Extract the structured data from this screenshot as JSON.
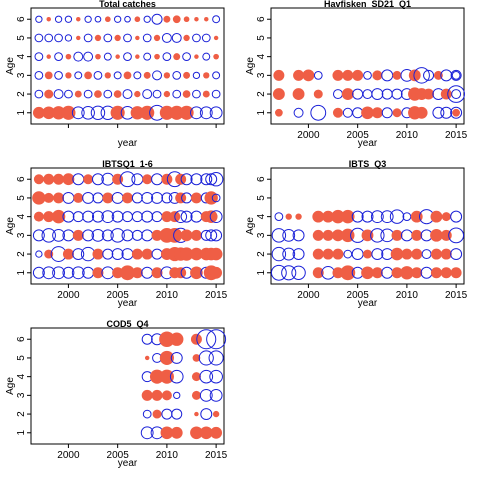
{
  "figure": {
    "ylabel": "Age",
    "xlabel": "year",
    "colors": {
      "positive": "#ef5e45",
      "negative": "#1b22d8",
      "frame": "#000000"
    }
  },
  "chart_data": [
    {
      "type": "scatter",
      "title": "Total catches",
      "xlabel": "year",
      "ylabel": "Age",
      "xlim": [
        1996.2,
        2015.8
      ],
      "ylim": [
        0.4,
        6.6
      ],
      "xticks": [
        2000,
        2005,
        2010,
        2015
      ],
      "yticks": [
        1,
        2,
        3,
        4,
        5,
        6
      ],
      "show_xticks": false,
      "encoding": "bubble; filled red = positive residual, open blue = negative residual; radius ~ magnitude",
      "rows": [
        {
          "age": 1,
          "r": [
            0.35,
            0.4,
            0.45,
            0.5,
            -0.35,
            -0.4,
            -0.45,
            -0.45,
            0.5,
            -0.4,
            0.45,
            0.5,
            -0.55,
            0.5,
            0.5,
            0.5,
            -0.35,
            -0.35,
            -0.35,
            -0.35,
            -0.35
          ]
        },
        {
          "age": 2,
          "r": [
            -0.15,
            0.2,
            -0.2,
            -0.15,
            0.12,
            -0.15,
            0.15,
            -0.15,
            0.15,
            -0.2,
            0.1,
            -0.2,
            -0.15,
            0.1,
            -0.15,
            0.15,
            -0.15,
            0.12,
            -0.15,
            -0.15,
            -0.2
          ]
        },
        {
          "age": 3,
          "r": [
            -0.15,
            0.15,
            -0.15,
            0.1,
            -0.12,
            0.15,
            -0.15,
            0.1,
            -0.12,
            0.15,
            -0.12,
            0.12,
            -0.2,
            0.1,
            -0.15,
            0.12,
            -0.1,
            0.1,
            -0.12,
            0.1,
            -0.12
          ]
        },
        {
          "age": 4,
          "r": [
            -0.15,
            0.05,
            -0.15,
            0.08,
            -0.2,
            -0.2,
            0.08,
            -0.12,
            0.05,
            -0.15,
            0.05,
            -0.12,
            0.08,
            -0.15,
            0.12,
            -0.15,
            0.05,
            -0.12,
            0.08,
            0.05,
            -0.15
          ]
        },
        {
          "age": 5,
          "r": [
            -0.15,
            -0.15,
            -0.15,
            -0.1,
            0.05,
            -0.15,
            0.1,
            -0.15,
            0.1,
            -0.15,
            0.05,
            -0.15,
            0.1,
            -0.2,
            -0.2,
            0.1,
            -0.15,
            -0.15,
            0.05,
            0.1,
            -0.15
          ]
        },
        {
          "age": 6,
          "r": [
            -0.1,
            0.05,
            -0.1,
            -0.1,
            0.05,
            -0.1,
            -0.08,
            0.08,
            -0.1,
            -0.08,
            0.08,
            -0.1,
            -0.25,
            0.12,
            0.15,
            0.08,
            0.05,
            0.05,
            -0.12,
            0.35,
            0.35
          ]
        }
      ]
    },
    {
      "type": "scatter",
      "title": "Havfisken_SD21_Q1",
      "xlabel": "year",
      "ylabel": "Age",
      "xlim": [
        1996.2,
        2015.8
      ],
      "ylim": [
        0.4,
        6.6
      ],
      "xticks": [
        2000,
        2005,
        2010,
        2015
      ],
      "yticks": [
        1,
        2,
        3,
        4,
        5,
        6
      ],
      "show_xticks": true,
      "rows": [
        {
          "age": 1,
          "r": [
            0.15,
            null,
            -0.2,
            null,
            -0.55,
            0.25,
            -0.2,
            -0.25,
            0.4,
            0.3,
            -0.25,
            0.2,
            -0.25,
            0.45,
            0.35,
            null,
            -0.3,
            -0.3,
            -0.3,
            0.15
          ]
        },
        {
          "age": 2,
          "r": [
            0.35,
            null,
            0.35,
            null,
            0.2,
            -0.2,
            0.35,
            -0.25,
            -0.2,
            -0.3,
            -0.25,
            -0.25,
            -0.3,
            0.45,
            0.35,
            0.3,
            -0.3,
            0.3,
            -0.7,
            -0.2
          ]
        },
        {
          "age": 3,
          "r": [
            0.3,
            null,
            0.3,
            0.35,
            -0.15,
            0.3,
            0.3,
            0.3,
            -0.15,
            0.25,
            -0.3,
            0.2,
            -0.35,
            0.35,
            -0.6,
            -0.25,
            0.2,
            -0.3,
            -0.25,
            -0.15
          ]
        }
      ],
      "row_years": [
        1997,
        1998,
        1999,
        2000,
        2001,
        2003,
        2004,
        2005,
        2006,
        2007,
        2008,
        2009,
        2010,
        2010.8,
        2011.5,
        2012.2,
        2013.2,
        2014,
        2015,
        2015
      ]
    },
    {
      "type": "scatter",
      "title": "IBTSQ1_1-6",
      "xlabel": "year",
      "ylabel": "Age",
      "xlim": [
        1996.2,
        2015.8
      ],
      "ylim": [
        0.4,
        6.6
      ],
      "xticks": [
        2000,
        2005,
        2010,
        2015
      ],
      "yticks": [
        1,
        2,
        3,
        4,
        5,
        6
      ],
      "show_xticks": true,
      "rows": [
        {
          "age": 1,
          "r": [
            -0.3,
            -0.35,
            -0.35,
            -0.3,
            -0.35,
            -0.3,
            0.3,
            -0.35,
            0.3,
            0.55,
            0.3,
            -0.3,
            0.3,
            -0.35,
            0.3,
            0.3,
            -0.3,
            0.4,
            -0.3,
            0.55,
            0.35
          ]
        },
        {
          "age": 2,
          "r": [
            -0.1,
            0.2,
            -0.55,
            0.3,
            -0.3,
            -0.45,
            0.3,
            -0.25,
            -0.3,
            -0.3,
            0.3,
            0.3,
            -0.25,
            0.35,
            0.5,
            0.45,
            0.45,
            0.4,
            0.4,
            0.4,
            0.4
          ]
        },
        {
          "age": 3,
          "r": [
            -0.3,
            -0.45,
            -0.35,
            -0.3,
            0.3,
            -0.3,
            -0.35,
            -0.3,
            -0.45,
            -0.3,
            -0.25,
            -0.3,
            0.3,
            0.55,
            0.55,
            -0.5,
            0.35,
            0.3,
            -0.25,
            -0.3,
            -0.3
          ]
        },
        {
          "age": 4,
          "r": [
            0.25,
            0.3,
            0.45,
            -0.3,
            -0.25,
            -0.3,
            -0.3,
            -0.35,
            -0.3,
            -0.25,
            -0.25,
            -0.3,
            -0.25,
            0.3,
            0.3,
            -0.35,
            -0.3,
            -0.3,
            0.3,
            0.4,
            -0.35
          ]
        },
        {
          "age": 5,
          "r": [
            0.45,
            0.25,
            0.3,
            -0.3,
            0.25,
            -0.3,
            -0.25,
            0.3,
            -0.3,
            0.3,
            -0.25,
            -0.3,
            -0.3,
            -0.25,
            -0.3,
            0.3,
            -0.25,
            0.3,
            -0.25,
            0.45,
            -0.15
          ]
        },
        {
          "age": 6,
          "r": [
            0.25,
            0.3,
            0.3,
            0.35,
            -0.3,
            0.25,
            -0.3,
            -0.35,
            0.3,
            -0.55,
            -0.3,
            0.25,
            -0.3,
            0.3,
            -0.55,
            0.3,
            -0.3,
            -0.3,
            -0.3,
            -0.3,
            -0.45
          ]
        }
      ],
      "row_years": [
        1997,
        1998,
        1999,
        2000,
        2001,
        2002,
        2003,
        2004,
        2005,
        2006,
        2007,
        2008,
        2009,
        2010,
        2010.8,
        2011.4,
        2012,
        2013,
        2014,
        2014.5,
        2015
      ]
    },
    {
      "type": "scatter",
      "title": "IBTS_Q3",
      "xlabel": "year",
      "ylabel": "Age",
      "xlim": [
        1996.2,
        2015.8
      ],
      "ylim": [
        0.4,
        6.6
      ],
      "xticks": [
        2000,
        2005,
        2010,
        2015
      ],
      "yticks": [
        1,
        2,
        3,
        4,
        5,
        6
      ],
      "show_xticks": true,
      "rows": [
        {
          "age": 1,
          "r": [
            -0.55,
            -0.5,
            -0.45,
            0.3,
            -0.4,
            0.3,
            0.55,
            -0.3,
            0.4,
            0.3,
            -0.3,
            0.3,
            0.45,
            0.3,
            -0.3,
            0.3,
            0.3,
            0.3
          ]
        },
        {
          "age": 2,
          "r": [
            -0.45,
            -0.35,
            -0.3,
            0.3,
            0.3,
            0.3,
            -0.15,
            -0.3,
            0.2,
            -0.3,
            -0.3,
            0.4,
            0.3,
            0.3,
            -0.2,
            0.3,
            0.3,
            -0.3
          ]
        },
        {
          "age": 3,
          "r": [
            -0.45,
            -0.35,
            -0.3,
            0.3,
            0.3,
            0.35,
            0.45,
            -0.5,
            0.35,
            -0.45,
            -0.4,
            0.3,
            -0.3,
            0.3,
            -0.3,
            0.4,
            0.3,
            -0.55
          ]
        },
        {
          "age": 4,
          "r": [
            -0.15,
            0.1,
            0.1,
            0.35,
            0.35,
            0.45,
            0.45,
            -0.3,
            -0.3,
            -0.35,
            -0.35,
            -0.45,
            -0.15,
            0.35,
            -0.5,
            0.35,
            0.2,
            -0.3
          ]
        }
      ],
      "row_years": [
        1997,
        1998,
        1999,
        2001,
        2002,
        2003,
        2004,
        2005,
        2006,
        2007,
        2008,
        2009,
        2010,
        2011,
        2012,
        2013,
        2014,
        2015
      ]
    },
    {
      "type": "scatter",
      "title": "COD5_Q4",
      "xlabel": "year",
      "ylabel": "Age",
      "xlim": [
        1996.2,
        2015.8
      ],
      "ylim": [
        0.4,
        6.6
      ],
      "xticks": [
        2000,
        2005,
        2010,
        2015
      ],
      "yticks": [
        1,
        2,
        3,
        4,
        5,
        6
      ],
      "show_xticks": true,
      "rows": [
        {
          "age": 1,
          "r": [
            -0.35,
            -0.35,
            0.4,
            0.35,
            0.4,
            0.4,
            0.35
          ]
        },
        {
          "age": 2,
          "r": [
            -0.15,
            0.2,
            -0.25,
            -0.25,
            0.05,
            -0.3,
            0.1
          ]
        },
        {
          "age": 3,
          "r": [
            0.3,
            0.3,
            0.25,
            -0.1,
            0.2,
            -0.35,
            -0.35
          ]
        },
        {
          "age": 4,
          "r": [
            -0.25,
            0.5,
            0.5,
            -0.4,
            0.2,
            -0.4,
            -0.4
          ]
        },
        {
          "age": 5,
          "r": [
            0.05,
            -0.2,
            0.5,
            -0.3,
            0.15,
            -0.5,
            -0.5
          ]
        },
        {
          "age": 6,
          "r": [
            -0.25,
            -0.3,
            0.6,
            0.45,
            0.3,
            -0.9,
            -0.9
          ]
        }
      ],
      "row_years": [
        2008,
        2009,
        2010,
        2011,
        2013,
        2014,
        2015
      ]
    }
  ]
}
